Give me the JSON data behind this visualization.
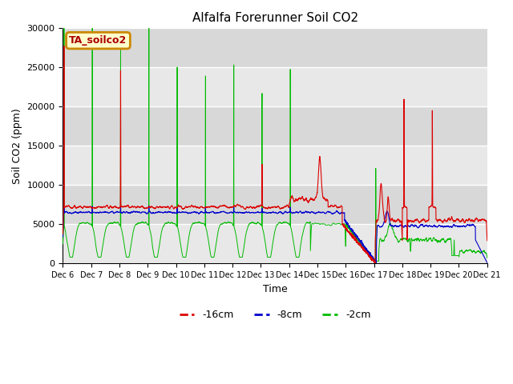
{
  "title": "Alfalfa Forerunner Soil CO2",
  "ylabel": "Soil CO2 (ppm)",
  "xlabel": "Time",
  "xlim": [
    0,
    360
  ],
  "ylim": [
    0,
    30000
  ],
  "yticks": [
    0,
    5000,
    10000,
    15000,
    20000,
    25000,
    30000
  ],
  "xtick_labels": [
    "Dec 6",
    "Dec 7",
    "Dec 8",
    "Dec 9",
    "Dec 10",
    "Dec 11",
    "Dec 12",
    "Dec 13",
    "Dec 14",
    "Dec 15",
    "Dec 16",
    "Dec 17",
    "Dec 18",
    "Dec 19",
    "Dec 20",
    "Dec 21"
  ],
  "xtick_positions": [
    0,
    24,
    48,
    72,
    96,
    120,
    144,
    168,
    192,
    216,
    240,
    264,
    288,
    312,
    336,
    360
  ],
  "colors": {
    "red": "#dd0000",
    "blue": "#0000cc",
    "green": "#00bb00"
  },
  "bg_color": "#e8e8e8",
  "legend_label": "TA_soilco2",
  "legend_box_color": "#ffffcc",
  "legend_border_color": "#cc8800",
  "series_labels": [
    "-16cm",
    "-8cm",
    "-2cm"
  ]
}
